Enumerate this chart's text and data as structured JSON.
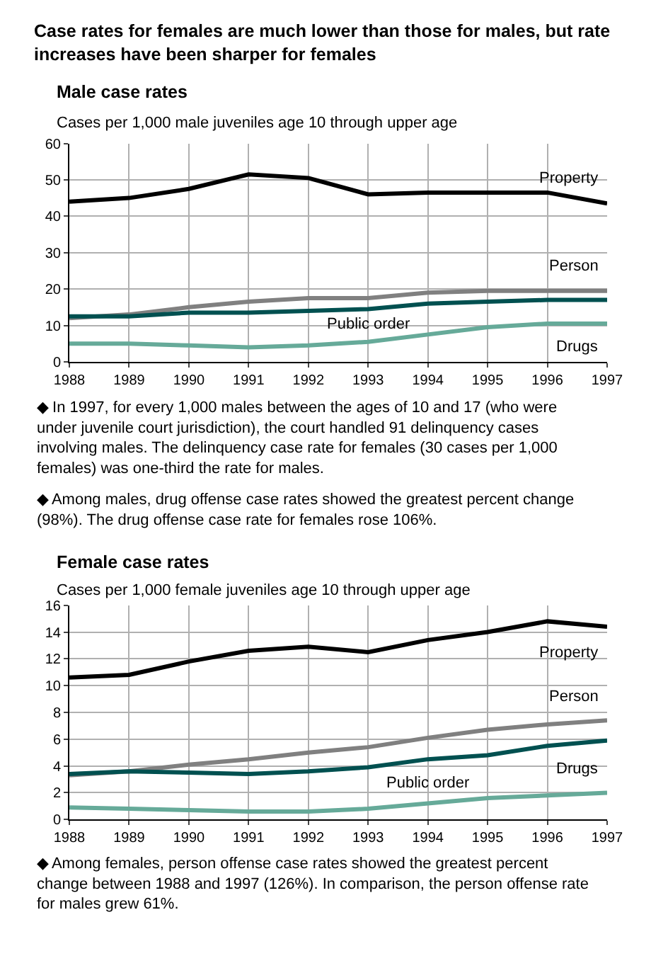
{
  "chart_data": [
    {
      "type": "line",
      "title": "Case rates for females are much lower than those for males, but rate increases have been sharper for females",
      "subtitle": "Male case rates",
      "ylabel": "Cases per 1,000 male juveniles age 10 through upper age",
      "x": [
        1988,
        1989,
        1990,
        1991,
        1992,
        1993,
        1994,
        1995,
        1996,
        1997
      ],
      "series": [
        {
          "name": "Property",
          "color": "#000000",
          "values": [
            44,
            45,
            47.5,
            51.5,
            50.5,
            46,
            46.5,
            46.5,
            46.5,
            43.5
          ]
        },
        {
          "name": "Person",
          "color": "#808080",
          "values": [
            12,
            13,
            15,
            16.5,
            17.5,
            17.5,
            19,
            19.5,
            19.5,
            19.5
          ]
        },
        {
          "name": "Public order",
          "color": "#005050",
          "values": [
            12.5,
            12.5,
            13.5,
            13.5,
            14,
            14.5,
            16,
            16.5,
            17,
            17
          ]
        },
        {
          "name": "Drugs",
          "color": "#66aa99",
          "values": [
            5,
            5,
            4.5,
            4,
            4.5,
            5.5,
            7.5,
            9.5,
            10.5,
            10.5
          ]
        }
      ],
      "xlim": [
        1988,
        1997
      ],
      "xticks": [
        1988,
        1989,
        1990,
        1991,
        1992,
        1993,
        1994,
        1995,
        1996,
        1997
      ],
      "ylim": [
        0,
        60
      ],
      "yticks": [
        0,
        10,
        20,
        30,
        40,
        50,
        60
      ],
      "grid": true,
      "legend": false,
      "marker": "none",
      "line_style": "solid",
      "annotations": [
        "◆ In 1997, for every 1,000 males between the ages of 10 and 17 (who were under juvenile court jurisdiction), the court handled 91 delinquency cases involving males. The delinquency case rate for females (30 cases per 1,000 females) was one-third the rate for males.",
        "◆ Among males, drug offense case rates showed the greatest percent change (98%). The drug offense case rate for females rose 106%."
      ]
    },
    {
      "type": "line",
      "title": "Female case rates",
      "ylabel": "Cases per 1,000 female juveniles age 10 through upper age",
      "x": [
        1988,
        1989,
        1990,
        1991,
        1992,
        1993,
        1994,
        1995,
        1996,
        1997
      ],
      "series": [
        {
          "name": "Property",
          "color": "#000000",
          "values": [
            10.6,
            10.8,
            11.8,
            12.6,
            12.9,
            12.5,
            13.4,
            14,
            14.8,
            14.4
          ]
        },
        {
          "name": "Person",
          "color": "#808080",
          "values": [
            3.3,
            3.6,
            4.1,
            4.5,
            5.0,
            5.4,
            6.1,
            6.7,
            7.1,
            7.4
          ]
        },
        {
          "name": "Public order",
          "color": "#005050",
          "values": [
            3.4,
            3.6,
            3.5,
            3.4,
            3.6,
            3.9,
            4.5,
            4.8,
            5.5,
            5.9
          ]
        },
        {
          "name": "Drugs",
          "color": "#66aa99",
          "values": [
            0.9,
            0.8,
            0.7,
            0.6,
            0.6,
            0.8,
            1.2,
            1.6,
            1.8,
            2.0
          ]
        }
      ],
      "xlim": [
        1988,
        1997
      ],
      "xticks": [
        1988,
        1989,
        1990,
        1991,
        1992,
        1993,
        1994,
        1995,
        1996,
        1997
      ],
      "ylim": [
        0,
        16
      ],
      "yticks": [
        0,
        2,
        4,
        6,
        8,
        10,
        12,
        14,
        16
      ],
      "grid": true,
      "legend": false,
      "marker": "none",
      "line_style": "solid",
      "annotations": [
        "◆ Among females, person offense case rates showed the greatest percent change between 1988 and 1997 (126%). In comparison, the person offense rate for males grew 61%."
      ]
    }
  ]
}
